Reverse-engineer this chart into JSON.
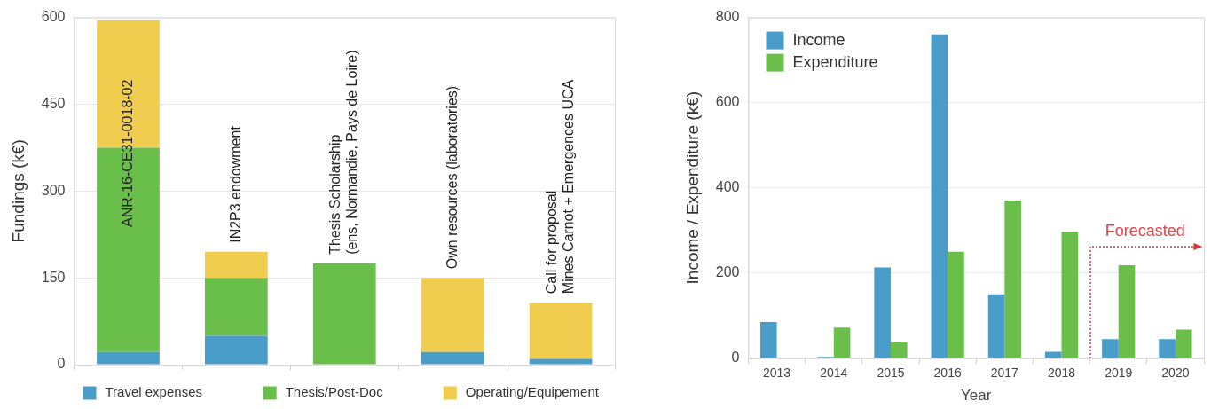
{
  "chart_data": [
    {
      "type": "bar",
      "stacked": true,
      "ylabel": "Fundings (k€)",
      "categories": [
        "ANR-16-CE31-0018-02",
        "IN2P3 endowment",
        "Thesis Scholarship\n(ens, Normandie, Pays de Loire)",
        "Own resources (laboratories)",
        "Call for proposal\nMines Carnot + Emergences UCA"
      ],
      "series": [
        {
          "name": "Travel expenses",
          "color": "#4a9cc9",
          "values": [
            22,
            50,
            null,
            22,
            10
          ]
        },
        {
          "name": "Thesis/Post-Doc",
          "color": "#6abf4b",
          "values": [
            353,
            100,
            175,
            null,
            null
          ]
        },
        {
          "name": "Operating/Equipement",
          "color": "#f1cd4f",
          "values": [
            220,
            45,
            null,
            128,
            97
          ]
        }
      ],
      "ylim": [
        0,
        600
      ],
      "yticks": [
        0,
        150,
        300,
        450,
        600
      ],
      "grid": "y",
      "legend": "bottom",
      "tick_labels": "y"
    },
    {
      "type": "bar",
      "xlabel": "Year",
      "ylabel": "Income / Expenditure (k€)",
      "categories": [
        "2013",
        "2014",
        "2015",
        "2016",
        "2017",
        "2018",
        "2019",
        "2020"
      ],
      "series": [
        {
          "name": "Income",
          "color": "#4a9cc9",
          "values": [
            85,
            3,
            213,
            760,
            150,
            15,
            45,
            45
          ]
        },
        {
          "name": "Expenditure",
          "color": "#6abf4b",
          "values": [
            null,
            72,
            37,
            250,
            370,
            297,
            218,
            67
          ]
        }
      ],
      "ylim": [
        0,
        800
      ],
      "yticks": [
        0,
        200,
        400,
        600,
        800
      ],
      "grid": "y",
      "legend": "top left",
      "annotations": [
        "Forecasted"
      ]
    }
  ]
}
